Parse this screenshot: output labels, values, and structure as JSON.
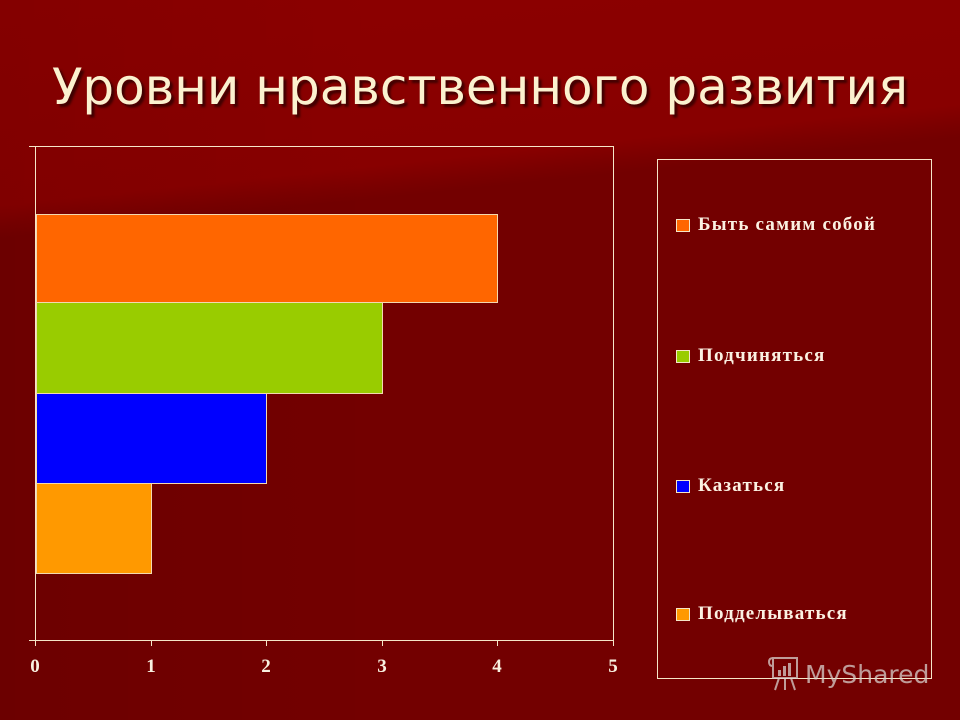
{
  "slide": {
    "title": "Уровни нравственного развития",
    "background_color": "#730000",
    "title_color": "#fbf1cf"
  },
  "axis": {
    "x_ticks": [
      "0",
      "1",
      "2",
      "3",
      "4",
      "5"
    ]
  },
  "legend": {
    "items": [
      {
        "label": "Быть самим собой",
        "color": "#ff6600"
      },
      {
        "label": "Подчиняться",
        "color": "#99cc00"
      },
      {
        "label": "Казаться",
        "color": "#0000ff"
      },
      {
        "label": "Подделываться",
        "color": "#ff9900"
      }
    ]
  },
  "watermark": {
    "text": "MyShared"
  },
  "chart_data": {
    "type": "bar",
    "orientation": "horizontal",
    "title": "Уровни нравственного развития",
    "categories": [
      "Быть самим собой",
      "Подчиняться",
      "Казаться",
      "Подделываться"
    ],
    "series": [
      {
        "name": "Быть самим собой",
        "values": [
          4
        ],
        "color": "#ff6600"
      },
      {
        "name": "Подчиняться",
        "values": [
          3
        ],
        "color": "#99cc00"
      },
      {
        "name": "Казаться",
        "values": [
          2
        ],
        "color": "#0000ff"
      },
      {
        "name": "Подделываться",
        "values": [
          1
        ],
        "color": "#ff9900"
      }
    ],
    "values": [
      4,
      3,
      2,
      1
    ],
    "xlabel": "",
    "ylabel": "",
    "xlim": [
      0,
      5
    ],
    "x_ticks": [
      0,
      1,
      2,
      3,
      4,
      5
    ],
    "grid": false,
    "legend_position": "right"
  }
}
